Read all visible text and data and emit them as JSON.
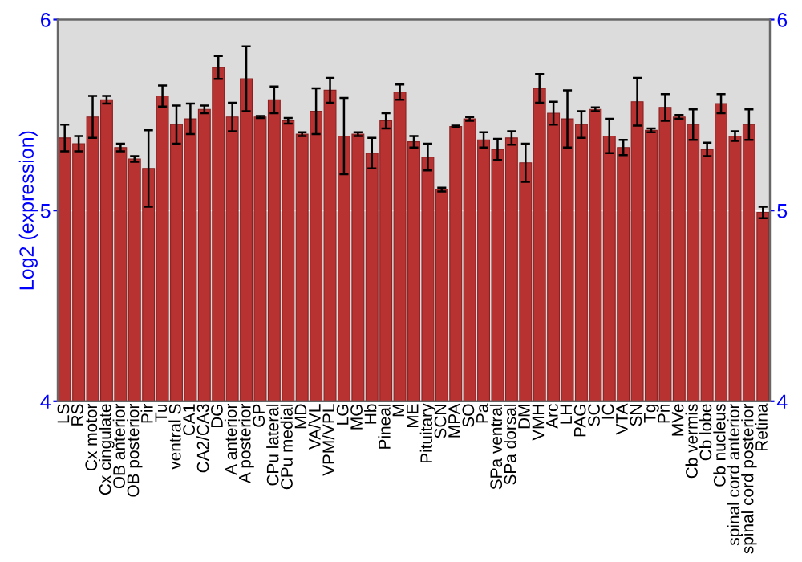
{
  "chart_data": {
    "type": "bar",
    "ylabel": "Log2 (expression)",
    "categories": [
      "LS",
      "RS",
      "Cx motor",
      "Cx cingulate",
      "OB anterior",
      "OB posterior",
      "Pir",
      "Tu",
      "ventral S",
      "CA1",
      "CA2/CA3",
      "DG",
      "A anterior",
      "A posterior",
      "GP",
      "CPu lateral",
      "CPu medial",
      "MD",
      "VA/VL",
      "VPM/VPL",
      "LG",
      "MG",
      "Hb",
      "Pineal",
      "M",
      "ME",
      "Pituitary",
      "SCN",
      "MPA",
      "SO",
      "Pa",
      "SPa ventral",
      "SPa dorsal",
      "DM",
      "VMH",
      "Arc",
      "LH",
      "PAG",
      "SC",
      "IC",
      "VTA",
      "SN",
      "Tg",
      "Pn",
      "MVe",
      "Cb vermis",
      "Cb lobe",
      "Cb nucleus",
      "spinal cord anterior",
      "spinal cord posterior",
      "Retina"
    ],
    "values": [
      5.38,
      5.35,
      5.49,
      5.58,
      5.33,
      5.27,
      5.22,
      5.6,
      5.45,
      5.48,
      5.53,
      5.75,
      5.49,
      5.69,
      5.49,
      5.58,
      5.47,
      5.4,
      5.52,
      5.63,
      5.39,
      5.4,
      5.3,
      5.47,
      5.62,
      5.36,
      5.28,
      5.11,
      5.44,
      5.48,
      5.37,
      5.32,
      5.38,
      5.25,
      5.64,
      5.51,
      5.48,
      5.45,
      5.53,
      5.39,
      5.33,
      5.57,
      5.42,
      5.54,
      5.49,
      5.45,
      5.32,
      5.56,
      5.39,
      5.45,
      4.99
    ],
    "errors": [
      0.07,
      0.04,
      0.11,
      0.02,
      0.02,
      0.015,
      0.2,
      0.055,
      0.1,
      0.08,
      0.02,
      0.06,
      0.075,
      0.17,
      0.005,
      0.07,
      0.015,
      0.01,
      0.12,
      0.065,
      0.2,
      0.01,
      0.08,
      0.04,
      0.04,
      0.03,
      0.07,
      0.01,
      0.005,
      0.01,
      0.04,
      0.055,
      0.035,
      0.1,
      0.075,
      0.06,
      0.15,
      0.07,
      0.01,
      0.09,
      0.04,
      0.125,
      0.01,
      0.07,
      0.01,
      0.08,
      0.035,
      0.05,
      0.025,
      0.08,
      0.03
    ],
    "color": "#b83232",
    "ylim": [
      4,
      6
    ],
    "yticks": [
      4,
      5,
      6
    ],
    "y2lim": [
      4,
      6
    ],
    "y2ticks": [
      4,
      5,
      6
    ],
    "grid": "y"
  }
}
